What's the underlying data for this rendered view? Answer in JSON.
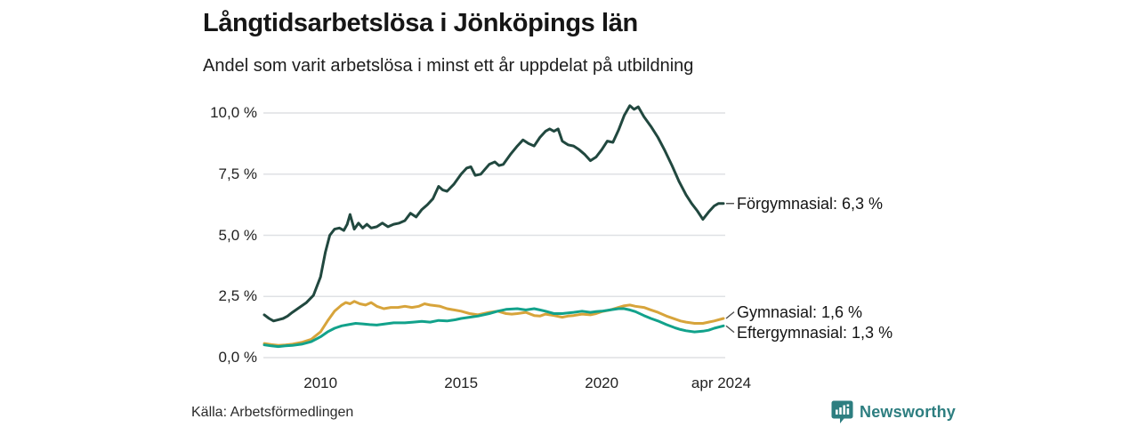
{
  "footer": {
    "source": "Källa: Arbetsförmedlingen",
    "brand": "Newsworthy"
  },
  "colors": {
    "forgymnasial": "#21483f",
    "gymnasial": "#d7a43b",
    "eftergymnasial": "#12a28b",
    "grid": "#dfe1e4",
    "connector": "#4d4d4d",
    "brand_teal": "#2d7e80"
  },
  "chart_data": {
    "type": "line",
    "title": "Långtidsarbetslösa i Jönköpings län",
    "subtitle": "Andel som varit arbetslösa i minst ett år uppdelat på utbildning",
    "xlabel": "",
    "ylabel": "",
    "xlim": [
      2008,
      2024.33
    ],
    "ylim": [
      0,
      10
    ],
    "grid": "horizontal",
    "legend_position": "right-of-line-end",
    "yticks": [
      {
        "v": 0,
        "label": "0,0 %"
      },
      {
        "v": 2.5,
        "label": "2,5 %"
      },
      {
        "v": 5,
        "label": "5,0 %"
      },
      {
        "v": 7.5,
        "label": "7,5 %"
      },
      {
        "v": 10,
        "label": "10,0 %"
      }
    ],
    "xticks": [
      {
        "v": 2010,
        "label": "2010"
      },
      {
        "v": 2015,
        "label": "2015"
      },
      {
        "v": 2020,
        "label": "2020"
      },
      {
        "v": 2024.25,
        "label": "apr 2024"
      }
    ],
    "series": [
      {
        "name": "Förgymnasial",
        "label": "Förgymnasial: 6,3 %",
        "end_value": 6.3,
        "color_key": "forgymnasial",
        "points": [
          [
            2008.0,
            1.75
          ],
          [
            2008.17,
            1.6
          ],
          [
            2008.33,
            1.5
          ],
          [
            2008.5,
            1.55
          ],
          [
            2008.67,
            1.6
          ],
          [
            2008.83,
            1.7
          ],
          [
            2009.0,
            1.85
          ],
          [
            2009.25,
            2.05
          ],
          [
            2009.5,
            2.25
          ],
          [
            2009.75,
            2.55
          ],
          [
            2010.0,
            3.3
          ],
          [
            2010.17,
            4.3
          ],
          [
            2010.33,
            5.0
          ],
          [
            2010.5,
            5.25
          ],
          [
            2010.67,
            5.3
          ],
          [
            2010.83,
            5.2
          ],
          [
            2010.95,
            5.45
          ],
          [
            2011.05,
            5.85
          ],
          [
            2011.2,
            5.25
          ],
          [
            2011.35,
            5.5
          ],
          [
            2011.5,
            5.3
          ],
          [
            2011.65,
            5.45
          ],
          [
            2011.8,
            5.3
          ],
          [
            2012.0,
            5.35
          ],
          [
            2012.2,
            5.5
          ],
          [
            2012.4,
            5.35
          ],
          [
            2012.6,
            5.45
          ],
          [
            2012.8,
            5.5
          ],
          [
            2013.0,
            5.6
          ],
          [
            2013.2,
            5.9
          ],
          [
            2013.4,
            5.75
          ],
          [
            2013.6,
            6.05
          ],
          [
            2013.8,
            6.25
          ],
          [
            2014.0,
            6.5
          ],
          [
            2014.2,
            7.0
          ],
          [
            2014.35,
            6.85
          ],
          [
            2014.5,
            6.8
          ],
          [
            2014.75,
            7.1
          ],
          [
            2015.0,
            7.5
          ],
          [
            2015.2,
            7.75
          ],
          [
            2015.35,
            7.8
          ],
          [
            2015.5,
            7.45
          ],
          [
            2015.7,
            7.5
          ],
          [
            2015.85,
            7.7
          ],
          [
            2016.0,
            7.9
          ],
          [
            2016.2,
            8.0
          ],
          [
            2016.35,
            7.85
          ],
          [
            2016.5,
            7.9
          ],
          [
            2016.75,
            8.3
          ],
          [
            2017.0,
            8.65
          ],
          [
            2017.2,
            8.9
          ],
          [
            2017.4,
            8.75
          ],
          [
            2017.6,
            8.65
          ],
          [
            2017.8,
            9.0
          ],
          [
            2018.0,
            9.25
          ],
          [
            2018.15,
            9.35
          ],
          [
            2018.3,
            9.25
          ],
          [
            2018.45,
            9.35
          ],
          [
            2018.6,
            8.85
          ],
          [
            2018.8,
            8.7
          ],
          [
            2019.0,
            8.65
          ],
          [
            2019.2,
            8.5
          ],
          [
            2019.4,
            8.3
          ],
          [
            2019.6,
            8.05
          ],
          [
            2019.8,
            8.2
          ],
          [
            2020.0,
            8.5
          ],
          [
            2020.2,
            8.85
          ],
          [
            2020.4,
            8.8
          ],
          [
            2020.6,
            9.3
          ],
          [
            2020.8,
            9.9
          ],
          [
            2021.0,
            10.3
          ],
          [
            2021.15,
            10.15
          ],
          [
            2021.3,
            10.25
          ],
          [
            2021.5,
            9.85
          ],
          [
            2021.75,
            9.45
          ],
          [
            2022.0,
            9.0
          ],
          [
            2022.25,
            8.45
          ],
          [
            2022.5,
            7.85
          ],
          [
            2022.75,
            7.2
          ],
          [
            2023.0,
            6.65
          ],
          [
            2023.2,
            6.3
          ],
          [
            2023.4,
            6.0
          ],
          [
            2023.6,
            5.65
          ],
          [
            2023.8,
            5.95
          ],
          [
            2024.0,
            6.2
          ],
          [
            2024.15,
            6.3
          ],
          [
            2024.33,
            6.3
          ]
        ]
      },
      {
        "name": "Gymnasial",
        "label": "Gymnasial: 1,6 %",
        "end_value": 1.6,
        "color_key": "gymnasial",
        "points": [
          [
            2008.0,
            0.58
          ],
          [
            2008.25,
            0.53
          ],
          [
            2008.5,
            0.5
          ],
          [
            2008.75,
            0.52
          ],
          [
            2009.0,
            0.55
          ],
          [
            2009.33,
            0.62
          ],
          [
            2009.67,
            0.75
          ],
          [
            2010.0,
            1.05
          ],
          [
            2010.25,
            1.5
          ],
          [
            2010.5,
            1.9
          ],
          [
            2010.75,
            2.15
          ],
          [
            2010.9,
            2.25
          ],
          [
            2011.05,
            2.2
          ],
          [
            2011.2,
            2.3
          ],
          [
            2011.4,
            2.2
          ],
          [
            2011.6,
            2.15
          ],
          [
            2011.8,
            2.25
          ],
          [
            2012.0,
            2.1
          ],
          [
            2012.25,
            2.0
          ],
          [
            2012.5,
            2.05
          ],
          [
            2012.75,
            2.05
          ],
          [
            2013.0,
            2.1
          ],
          [
            2013.25,
            2.05
          ],
          [
            2013.5,
            2.1
          ],
          [
            2013.7,
            2.2
          ],
          [
            2013.9,
            2.15
          ],
          [
            2014.25,
            2.1
          ],
          [
            2014.5,
            2.0
          ],
          [
            2014.75,
            1.95
          ],
          [
            2015.0,
            1.9
          ],
          [
            2015.3,
            1.8
          ],
          [
            2015.6,
            1.75
          ],
          [
            2015.8,
            1.8
          ],
          [
            2016.0,
            1.85
          ],
          [
            2016.3,
            1.9
          ],
          [
            2016.6,
            1.8
          ],
          [
            2016.8,
            1.78
          ],
          [
            2017.0,
            1.8
          ],
          [
            2017.3,
            1.85
          ],
          [
            2017.6,
            1.72
          ],
          [
            2017.8,
            1.7
          ],
          [
            2018.0,
            1.78
          ],
          [
            2018.3,
            1.72
          ],
          [
            2018.6,
            1.65
          ],
          [
            2018.8,
            1.7
          ],
          [
            2019.0,
            1.72
          ],
          [
            2019.3,
            1.78
          ],
          [
            2019.6,
            1.75
          ],
          [
            2019.8,
            1.8
          ],
          [
            2020.0,
            1.88
          ],
          [
            2020.3,
            1.95
          ],
          [
            2020.6,
            2.05
          ],
          [
            2020.8,
            2.12
          ],
          [
            2021.0,
            2.15
          ],
          [
            2021.2,
            2.1
          ],
          [
            2021.5,
            2.05
          ],
          [
            2021.75,
            1.95
          ],
          [
            2022.0,
            1.85
          ],
          [
            2022.3,
            1.7
          ],
          [
            2022.6,
            1.58
          ],
          [
            2022.8,
            1.5
          ],
          [
            2023.0,
            1.45
          ],
          [
            2023.3,
            1.4
          ],
          [
            2023.6,
            1.4
          ],
          [
            2023.8,
            1.45
          ],
          [
            2024.0,
            1.5
          ],
          [
            2024.33,
            1.6
          ]
        ]
      },
      {
        "name": "Eftergymnasial",
        "label": "Eftergymnasial: 1,3 %",
        "end_value": 1.3,
        "color_key": "eftergymnasial",
        "points": [
          [
            2008.0,
            0.52
          ],
          [
            2008.25,
            0.48
          ],
          [
            2008.5,
            0.45
          ],
          [
            2008.75,
            0.48
          ],
          [
            2009.0,
            0.5
          ],
          [
            2009.33,
            0.55
          ],
          [
            2009.67,
            0.65
          ],
          [
            2010.0,
            0.85
          ],
          [
            2010.25,
            1.05
          ],
          [
            2010.5,
            1.2
          ],
          [
            2010.75,
            1.3
          ],
          [
            2011.0,
            1.35
          ],
          [
            2011.25,
            1.4
          ],
          [
            2011.5,
            1.38
          ],
          [
            2011.75,
            1.35
          ],
          [
            2012.0,
            1.33
          ],
          [
            2012.3,
            1.38
          ],
          [
            2012.6,
            1.42
          ],
          [
            2013.0,
            1.42
          ],
          [
            2013.3,
            1.45
          ],
          [
            2013.6,
            1.48
          ],
          [
            2013.9,
            1.45
          ],
          [
            2014.2,
            1.52
          ],
          [
            2014.5,
            1.5
          ],
          [
            2014.8,
            1.55
          ],
          [
            2015.0,
            1.6
          ],
          [
            2015.3,
            1.65
          ],
          [
            2015.6,
            1.7
          ],
          [
            2016.0,
            1.8
          ],
          [
            2016.3,
            1.9
          ],
          [
            2016.6,
            1.97
          ],
          [
            2017.0,
            2.0
          ],
          [
            2017.3,
            1.95
          ],
          [
            2017.6,
            2.0
          ],
          [
            2017.8,
            1.95
          ],
          [
            2018.0,
            1.9
          ],
          [
            2018.3,
            1.8
          ],
          [
            2018.6,
            1.8
          ],
          [
            2019.0,
            1.85
          ],
          [
            2019.3,
            1.9
          ],
          [
            2019.6,
            1.85
          ],
          [
            2019.8,
            1.88
          ],
          [
            2020.0,
            1.9
          ],
          [
            2020.3,
            1.95
          ],
          [
            2020.6,
            2.0
          ],
          [
            2020.8,
            2.0
          ],
          [
            2021.0,
            1.95
          ],
          [
            2021.2,
            1.88
          ],
          [
            2021.5,
            1.72
          ],
          [
            2021.75,
            1.6
          ],
          [
            2022.0,
            1.5
          ],
          [
            2022.3,
            1.35
          ],
          [
            2022.6,
            1.22
          ],
          [
            2022.8,
            1.15
          ],
          [
            2023.0,
            1.1
          ],
          [
            2023.3,
            1.05
          ],
          [
            2023.6,
            1.08
          ],
          [
            2023.8,
            1.12
          ],
          [
            2024.0,
            1.2
          ],
          [
            2024.33,
            1.3
          ]
        ]
      }
    ]
  }
}
